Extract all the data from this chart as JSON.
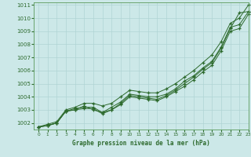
{
  "xlabel": "Graphe pression niveau de la mer (hPa)",
  "xlim": [
    -0.5,
    23
  ],
  "ylim": [
    1001.5,
    1011.2
  ],
  "yticks": [
    1002,
    1003,
    1004,
    1005,
    1006,
    1007,
    1008,
    1009,
    1010,
    1011
  ],
  "xticks": [
    0,
    1,
    2,
    3,
    4,
    5,
    6,
    7,
    8,
    9,
    10,
    11,
    12,
    13,
    14,
    15,
    16,
    17,
    18,
    19,
    20,
    21,
    22,
    23
  ],
  "background_color": "#cce8e8",
  "grid_color": "#b0d4d4",
  "line_color": "#2d6a2d",
  "series": [
    [
      1001.7,
      1001.8,
      1002.0,
      1002.9,
      1003.0,
      1003.3,
      1003.0,
      1002.8,
      1003.0,
      1003.5,
      1004.1,
      1004.0,
      1003.9,
      1003.8,
      1004.1,
      1004.5,
      1005.0,
      1005.5,
      1006.1,
      1006.6,
      1007.7,
      1009.2,
      1010.4,
      1010.5
    ],
    [
      1001.7,
      1001.8,
      1002.0,
      1002.9,
      1003.1,
      1003.2,
      1003.2,
      1002.8,
      1003.2,
      1003.6,
      1004.2,
      1004.1,
      1004.0,
      1004.0,
      1004.2,
      1004.6,
      1005.2,
      1005.6,
      1006.2,
      1006.7,
      1007.8,
      1009.3,
      1009.5,
      1010.5
    ],
    [
      1001.7,
      1001.8,
      1002.0,
      1002.9,
      1003.0,
      1003.1,
      1003.1,
      1002.7,
      1003.0,
      1003.4,
      1004.0,
      1003.9,
      1003.8,
      1003.7,
      1004.0,
      1004.4,
      1004.8,
      1005.3,
      1005.9,
      1006.4,
      1007.5,
      1009.0,
      1009.2,
      1010.3
    ],
    [
      1001.7,
      1001.9,
      1002.1,
      1003.0,
      1003.2,
      1003.5,
      1003.5,
      1003.3,
      1003.5,
      1004.0,
      1004.5,
      1004.4,
      1004.3,
      1004.3,
      1004.6,
      1005.0,
      1005.5,
      1006.0,
      1006.6,
      1007.2,
      1008.2,
      1009.6,
      1010.0,
      1011.0
    ]
  ]
}
